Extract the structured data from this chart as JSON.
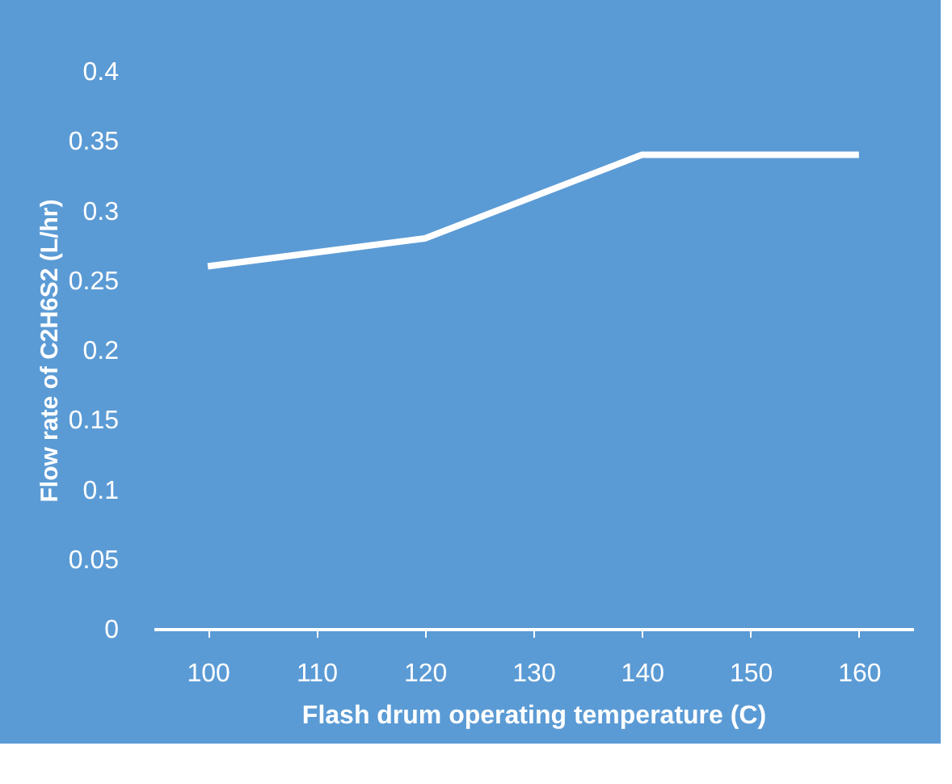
{
  "chart_data": {
    "type": "line",
    "xlabel": "Flash drum operating temperature (C)",
    "ylabel": "Flow rate of C2H6S2 (L/hr)",
    "categories": [
      "100",
      "110",
      "120",
      "130",
      "140",
      "150",
      "160"
    ],
    "series": [
      {
        "color": "#ffffff",
        "values": [
          0.26,
          0.27,
          0.28,
          0.31,
          0.34,
          0.34,
          0.34
        ]
      }
    ],
    "ylim": [
      0,
      0.4
    ],
    "yticks": [
      0,
      0.05,
      0.1,
      0.15,
      0.2,
      0.25,
      0.3,
      0.35,
      0.4
    ],
    "grid": false,
    "marker": "none",
    "line_style": "solid"
  }
}
